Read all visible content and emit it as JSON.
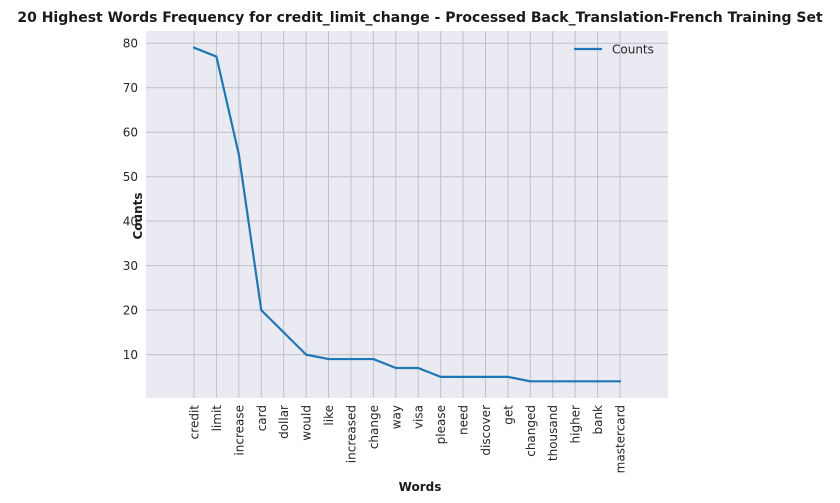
{
  "chart_data": {
    "type": "line",
    "title": "20 Highest Words Frequency for credit_limit_change - Processed Back_Translation-French Training Set",
    "xlabel": "Words",
    "ylabel": "Counts",
    "categories": [
      "credit",
      "limit",
      "increase",
      "card",
      "dollar",
      "would",
      "like",
      "increased",
      "change",
      "way",
      "visa",
      "please",
      "need",
      "discover",
      "get",
      "changed",
      "thousand",
      "higher",
      "bank",
      "mastercard"
    ],
    "series": [
      {
        "name": "Counts",
        "values": [
          79,
          77,
          55,
          20,
          15,
          10,
          9,
          9,
          9,
          7,
          7,
          5,
          5,
          5,
          5,
          4,
          4,
          4,
          4,
          4
        ],
        "color": "#1f77b4"
      }
    ],
    "yticks": [
      10,
      20,
      30,
      40,
      50,
      60,
      70,
      80
    ],
    "ylim": [
      0.25,
      82.75
    ],
    "grid": true,
    "legend_position": "top-right",
    "colors": {
      "plot_background": "#eaeaf2",
      "grid": "#c0c0c8",
      "line": "#1f77b4"
    }
  }
}
